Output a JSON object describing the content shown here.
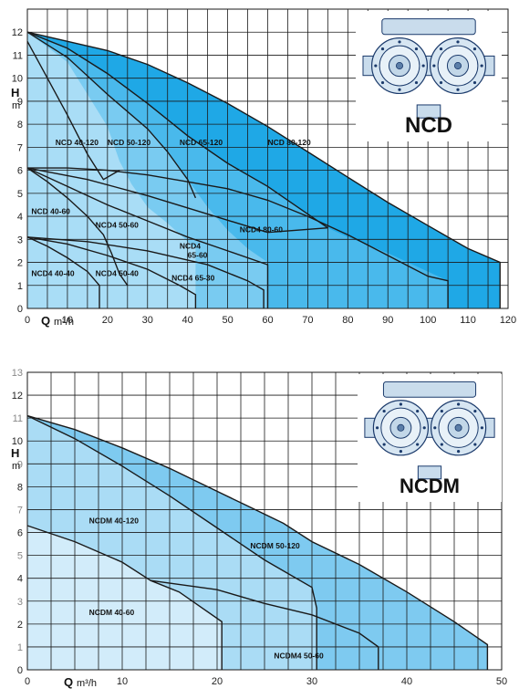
{
  "chart_data": [
    {
      "type": "area",
      "logo": "NCD",
      "xlabel_letter": "Q",
      "xlabel_unit": "m³/h",
      "ylabel_letter": "H",
      "ylabel_unit": "m",
      "xlim": [
        0,
        120
      ],
      "ylim": [
        0,
        13
      ],
      "xticks": [
        0,
        10,
        20,
        30,
        40,
        50,
        60,
        70,
        80,
        90,
        100,
        110,
        120
      ],
      "yticks": [
        0,
        1,
        2,
        3,
        4,
        5,
        6,
        7,
        8,
        9,
        10,
        11,
        12
      ],
      "areas": [
        {
          "name": "NCD 80-120",
          "color": "#1fa8e6",
          "points": [
            [
              0,
              12
            ],
            [
              10,
              11.6
            ],
            [
              20,
              11.2
            ],
            [
              30,
              10.6
            ],
            [
              40,
              9.8
            ],
            [
              50,
              8.9
            ],
            [
              60,
              7.9
            ],
            [
              70,
              6.8
            ],
            [
              80,
              5.7
            ],
            [
              90,
              4.6
            ],
            [
              100,
              3.6
            ],
            [
              110,
              2.6
            ],
            [
              118,
              2
            ],
            [
              118,
              0
            ],
            [
              0,
              0
            ]
          ]
        },
        {
          "name": "NCD 65-120",
          "color": "#49b9ec",
          "points": [
            [
              0,
              12
            ],
            [
              10,
              11.3
            ],
            [
              20,
              10.2
            ],
            [
              30,
              8.9
            ],
            [
              40,
              7.5
            ],
            [
              50,
              6.3
            ],
            [
              60,
              5.3
            ],
            [
              70,
              4.1
            ],
            [
              75,
              3.5
            ],
            [
              80,
              3.1
            ],
            [
              90,
              2.4
            ],
            [
              105,
              1.2
            ],
            [
              105,
              0
            ],
            [
              0,
              0
            ]
          ]
        },
        {
          "name": "NCD 50-120",
          "color": "#79cbf1",
          "points": [
            [
              0,
              12
            ],
            [
              10,
              10.9
            ],
            [
              20,
              9.3
            ],
            [
              30,
              7.8
            ],
            [
              35,
              6.8
            ],
            [
              40,
              5.6
            ],
            [
              45,
              4.4
            ],
            [
              50,
              3.4
            ],
            [
              55,
              2.6
            ],
            [
              60,
              2
            ],
            [
              60,
              0
            ],
            [
              0,
              0
            ]
          ]
        },
        {
          "name": "NCD 40-120",
          "color": "#a9ddf6",
          "points": [
            [
              0,
              12
            ],
            [
              10,
              10.7
            ],
            [
              15,
              9.3
            ],
            [
              20,
              7.9
            ],
            [
              23,
              6.4
            ],
            [
              26,
              5.4
            ],
            [
              30,
              4.4
            ],
            [
              35,
              3.7
            ],
            [
              40,
              2.9
            ],
            [
              42,
              2.6
            ],
            [
              42,
              0
            ],
            [
              0,
              0
            ]
          ]
        }
      ],
      "curves": [
        {
          "name": "NCD 40-120",
          "points": [
            [
              0,
              11.6
            ],
            [
              5,
              10
            ],
            [
              10,
              8.4
            ],
            [
              15,
              6.7
            ],
            [
              19,
              5.6
            ],
            [
              23,
              6
            ]
          ]
        },
        {
          "name": "NCD 50-120",
          "points": [
            [
              0,
              12
            ],
            [
              10,
              10.9
            ],
            [
              20,
              9.3
            ],
            [
              30,
              7.8
            ],
            [
              35,
              6.8
            ],
            [
              40,
              5.6
            ],
            [
              42,
              4.8
            ]
          ]
        },
        {
          "name": "NCD 65-120",
          "points": [
            [
              0,
              12
            ],
            [
              10,
              11.3
            ],
            [
              20,
              10.2
            ],
            [
              30,
              8.9
            ],
            [
              40,
              7.5
            ],
            [
              50,
              6.3
            ],
            [
              60,
              5.3
            ],
            [
              70,
              4.1
            ],
            [
              75,
              3.5
            ]
          ]
        },
        {
          "name": "NCD 80-120",
          "points": [
            [
              0,
              12
            ],
            [
              10,
              11.6
            ],
            [
              20,
              11.2
            ],
            [
              30,
              10.6
            ],
            [
              40,
              9.8
            ],
            [
              50,
              8.9
            ],
            [
              60,
              7.9
            ],
            [
              70,
              6.8
            ],
            [
              80,
              5.7
            ],
            [
              90,
              4.6
            ],
            [
              100,
              3.6
            ],
            [
              110,
              2.6
            ],
            [
              118,
              2
            ],
            [
              118,
              0
            ]
          ]
        },
        {
          "name": "NCD 40-60",
          "points": [
            [
              0,
              6.1
            ],
            [
              5,
              5.5
            ],
            [
              10,
              4.8
            ],
            [
              15,
              4
            ],
            [
              19,
              3.2
            ],
            [
              21,
              2.4
            ],
            [
              23,
              1.5
            ],
            [
              25,
              1
            ]
          ]
        },
        {
          "name": "NCD4 50-60",
          "points": [
            [
              0,
              6.1
            ],
            [
              10,
              5.3
            ],
            [
              20,
              4.5
            ],
            [
              30,
              3.8
            ],
            [
              40,
              3.1
            ],
            [
              50,
              2.5
            ],
            [
              60,
              1.9
            ],
            [
              60,
              0
            ]
          ]
        },
        {
          "name": "NCD4 65-60",
          "points": [
            [
              0,
              6.1
            ],
            [
              15,
              5.6
            ],
            [
              30,
              4.9
            ],
            [
              45,
              4.1
            ],
            [
              60,
              3.3
            ],
            [
              75,
              3.5
            ]
          ]
        },
        {
          "name": "NCD4 80-60",
          "points": [
            [
              0,
              6.1
            ],
            [
              10,
              6.1
            ],
            [
              20,
              6
            ],
            [
              30,
              5.8
            ],
            [
              40,
              5.5
            ],
            [
              50,
              5.2
            ],
            [
              60,
              4.7
            ],
            [
              70,
              4
            ],
            [
              80,
              3.2
            ],
            [
              90,
              2.3
            ],
            [
              100,
              1.4
            ],
            [
              105,
              1.2
            ],
            [
              105,
              0
            ]
          ]
        },
        {
          "name": "NCD4 40-40",
          "points": [
            [
              0,
              3.1
            ],
            [
              5,
              2.7
            ],
            [
              10,
              2.2
            ],
            [
              15,
              1.6
            ],
            [
              18,
              1
            ],
            [
              18,
              0
            ]
          ]
        },
        {
          "name": "NCD4 50-40",
          "points": [
            [
              0,
              3.1
            ],
            [
              10,
              2.8
            ],
            [
              20,
              2.3
            ],
            [
              30,
              1.7
            ],
            [
              38,
              1
            ],
            [
              42,
              0.6
            ],
            [
              42,
              0
            ]
          ]
        },
        {
          "name": "NCD4 65-30",
          "points": [
            [
              0,
              3.1
            ],
            [
              15,
              2.9
            ],
            [
              30,
              2.5
            ],
            [
              45,
              1.9
            ],
            [
              55,
              1.2
            ],
            [
              59,
              0.8
            ],
            [
              59,
              0
            ]
          ]
        }
      ],
      "labels": [
        {
          "text": "NCD 40-120",
          "x": 7,
          "y": 7.1
        },
        {
          "text": "NCD 50-120",
          "x": 20,
          "y": 7.1
        },
        {
          "text": "NCD 65-120",
          "x": 38,
          "y": 7.1
        },
        {
          "text": "NCD 80-120",
          "x": 60,
          "y": 7.1
        },
        {
          "text": "NCD 40-60",
          "x": 1,
          "y": 4.1
        },
        {
          "text": "NCD4 50-60",
          "x": 17,
          "y": 3.5
        },
        {
          "text": "NCD4 80-60",
          "x": 53,
          "y": 3.3
        },
        {
          "text": "NCD4",
          "x": 38,
          "y": 2.6
        },
        {
          "text": "65-60",
          "x": 40,
          "y": 2.2
        },
        {
          "text": "NCD4 40-40",
          "x": 1,
          "y": 1.4
        },
        {
          "text": "NCD4 50-40",
          "x": 17,
          "y": 1.4
        },
        {
          "text": "NCD4 65-30",
          "x": 36,
          "y": 1.2
        }
      ]
    },
    {
      "type": "area",
      "logo": "NCDM",
      "xlabel_letter": "Q",
      "xlabel_unit": "m³/h",
      "ylabel_letter": "H",
      "ylabel_unit": "m",
      "xlim": [
        0,
        50
      ],
      "ylim": [
        0,
        13
      ],
      "xticks": [
        0,
        10,
        20,
        30,
        40,
        50
      ],
      "yticks": [
        0,
        1,
        2,
        3,
        4,
        5,
        6,
        7,
        8,
        9,
        10,
        11,
        12,
        13
      ],
      "areas": [
        {
          "name": "NCDM 50-120",
          "color": "#7ecaf0",
          "points": [
            [
              0,
              11.1
            ],
            [
              5,
              10.5
            ],
            [
              10,
              9.7
            ],
            [
              15,
              8.8
            ],
            [
              20,
              7.8
            ],
            [
              23,
              7.2
            ],
            [
              27,
              6.4
            ],
            [
              30,
              5.6
            ],
            [
              35,
              4.6
            ],
            [
              40,
              3.4
            ],
            [
              45,
              2.1
            ],
            [
              48.5,
              1.1
            ],
            [
              48.5,
              0
            ],
            [
              0,
              0
            ]
          ]
        },
        {
          "name": "NCDM 40-120",
          "color": "#aadcf5",
          "points": [
            [
              0,
              11.1
            ],
            [
              5,
              10.1
            ],
            [
              10,
              8.9
            ],
            [
              15,
              7.6
            ],
            [
              20,
              6.2
            ],
            [
              25,
              4.8
            ],
            [
              30,
              3.6
            ],
            [
              30.5,
              2.7
            ],
            [
              30.5,
              0
            ],
            [
              0,
              0
            ]
          ]
        },
        {
          "name": "NCDM 40-60",
          "color": "#d2ecfa",
          "points": [
            [
              0,
              6.3
            ],
            [
              5,
              5.6
            ],
            [
              10,
              4.7
            ],
            [
              13,
              3.9
            ],
            [
              16,
              3.4
            ],
            [
              20.5,
              2.1
            ],
            [
              20.5,
              0
            ],
            [
              0,
              0
            ]
          ]
        }
      ],
      "curves": [
        {
          "name": "NCDM 50-120",
          "points": [
            [
              0,
              11.1
            ],
            [
              5,
              10.5
            ],
            [
              10,
              9.7
            ],
            [
              15,
              8.8
            ],
            [
              20,
              7.8
            ],
            [
              23,
              7.2
            ],
            [
              27,
              6.4
            ],
            [
              30,
              5.6
            ],
            [
              35,
              4.6
            ],
            [
              40,
              3.4
            ],
            [
              45,
              2.1
            ],
            [
              48.5,
              1.1
            ],
            [
              48.5,
              0
            ]
          ]
        },
        {
          "name": "NCDM 40-120",
          "points": [
            [
              0,
              11.1
            ],
            [
              5,
              10.1
            ],
            [
              10,
              8.9
            ],
            [
              15,
              7.6
            ],
            [
              20,
              6.2
            ],
            [
              25,
              4.8
            ],
            [
              30,
              3.6
            ],
            [
              30.5,
              2.7
            ],
            [
              30.5,
              0
            ]
          ]
        },
        {
          "name": "NCDM 40-60",
          "points": [
            [
              0,
              6.3
            ],
            [
              5,
              5.6
            ],
            [
              10,
              4.7
            ],
            [
              13,
              3.9
            ],
            [
              16,
              3.4
            ],
            [
              20.5,
              2.1
            ],
            [
              20.5,
              0
            ]
          ]
        },
        {
          "name": "NCDM4 50-60",
          "points": [
            [
              13,
              3.9
            ],
            [
              20,
              3.5
            ],
            [
              25,
              2.9
            ],
            [
              30,
              2.4
            ],
            [
              35,
              1.6
            ],
            [
              37,
              1
            ],
            [
              37,
              0
            ]
          ]
        }
      ],
      "labels": [
        {
          "text": "NCDM 40-120",
          "x": 6.5,
          "y": 6.4
        },
        {
          "text": "NCDM 50-120",
          "x": 23.5,
          "y": 5.3
        },
        {
          "text": "NCDM 40-60",
          "x": 6.5,
          "y": 2.4
        },
        {
          "text": "NCDM4 50-60",
          "x": 26,
          "y": 0.5
        }
      ]
    }
  ]
}
